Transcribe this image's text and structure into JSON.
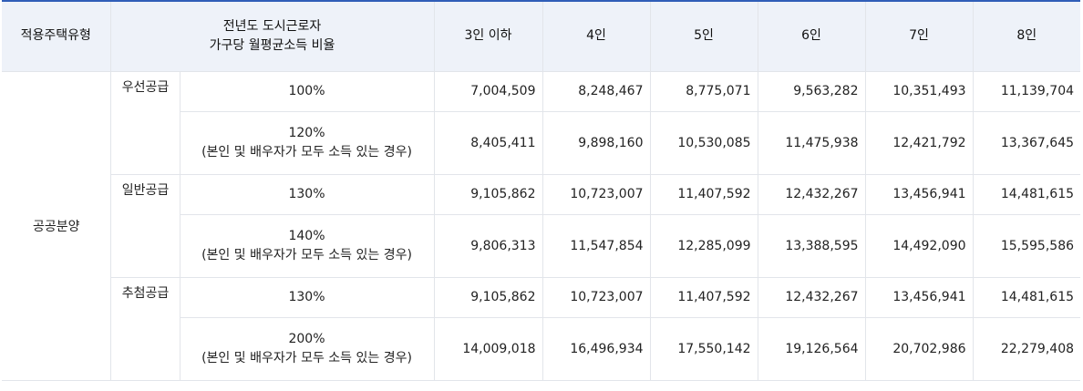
{
  "headers": {
    "type": "적용주택유형",
    "income_line1": "전년도 도시근로자",
    "income_line2": "가구당 월평균소득 비율",
    "h3": "3인 이하",
    "h4": "4인",
    "h5": "5인",
    "h6": "6인",
    "h7": "7인",
    "h8": "8인"
  },
  "housing_type": "공공분양",
  "groups": [
    {
      "name": "우선공급",
      "rows": [
        {
          "pct": "100%",
          "note": "",
          "values": [
            "7,004,509",
            "8,248,467",
            "8,775,071",
            "9,563,282",
            "10,351,493",
            "11,139,704"
          ]
        },
        {
          "pct": "120%",
          "note": "(본인 및 배우자가 모두 소득 있는 경우)",
          "values": [
            "8,405,411",
            "9,898,160",
            "10,530,085",
            "11,475,938",
            "12,421,792",
            "13,367,645"
          ]
        }
      ]
    },
    {
      "name": "일반공급",
      "rows": [
        {
          "pct": "130%",
          "note": "",
          "values": [
            "9,105,862",
            "10,723,007",
            "11,407,592",
            "12,432,267",
            "13,456,941",
            "14,481,615"
          ]
        },
        {
          "pct": "140%",
          "note": "(본인 및 배우자가 모두 소득 있는 경우)",
          "values": [
            "9,806,313",
            "11,547,854",
            "12,285,099",
            "13,388,595",
            "14,492,090",
            "15,595,586"
          ]
        }
      ]
    },
    {
      "name": "추첨공급",
      "rows": [
        {
          "pct": "130%",
          "note": "",
          "values": [
            "9,105,862",
            "10,723,007",
            "11,407,592",
            "12,432,267",
            "13,456,941",
            "14,481,615"
          ]
        },
        {
          "pct": "200%",
          "note": "(본인 및 배우자가 모두 소득 있는 경우)",
          "values": [
            "14,009,018",
            "16,496,934",
            "17,550,142",
            "19,126,564",
            "20,702,986",
            "22,279,408"
          ]
        }
      ]
    }
  ]
}
